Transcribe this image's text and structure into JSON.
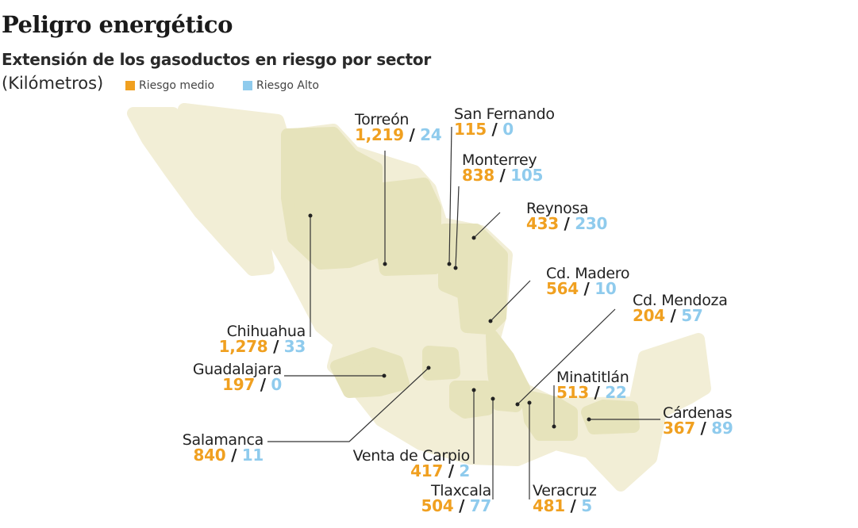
{
  "header": {
    "title": "Peligro energético",
    "subtitle": "Extensión de los gasoductos en riesgo por sector",
    "unit": "(Kilómetros)"
  },
  "legend": [
    {
      "label": "Riesgo medio",
      "color": "#f0a020"
    },
    {
      "label": "Riesgo Alto",
      "color": "#8fcbed"
    }
  ],
  "separator": "/",
  "sectors": {
    "torreon": {
      "name": "Torreón",
      "medio": "1,219",
      "alto": "24"
    },
    "san_fernando": {
      "name": "San Fernando",
      "medio": "115",
      "alto": "0"
    },
    "monterrey": {
      "name": "Monterrey",
      "medio": "838",
      "alto": "105"
    },
    "reynosa": {
      "name": "Reynosa",
      "medio": "433",
      "alto": "230"
    },
    "cd_madero": {
      "name": "Cd. Madero",
      "medio": "564",
      "alto": "10"
    },
    "cd_mendoza": {
      "name": "Cd. Mendoza",
      "medio": "204",
      "alto": "57"
    },
    "chihuahua": {
      "name": "Chihuahua",
      "medio": "1,278",
      "alto": "33"
    },
    "guadalajara": {
      "name": "Guadalajara",
      "medio": "197",
      "alto": "0"
    },
    "minatitlan": {
      "name": "Minatitlán",
      "medio": "513",
      "alto": "22"
    },
    "cardenas": {
      "name": "Cárdenas",
      "medio": "367",
      "alto": "89"
    },
    "salamanca": {
      "name": "Salamanca",
      "medio": "840",
      "alto": "11"
    },
    "venta_de_carpio": {
      "name": "Venta de Carpio",
      "medio": "417",
      "alto": "2"
    },
    "tlaxcala": {
      "name": "Tlaxcala",
      "medio": "504",
      "alto": "77"
    },
    "veracruz": {
      "name": "Veracruz",
      "medio": "481",
      "alto": "5"
    }
  },
  "colors": {
    "land_light": "#f2eed6",
    "land_dark": "#e6e3bb",
    "medio": "#f0a020",
    "alto": "#8fcbed"
  }
}
